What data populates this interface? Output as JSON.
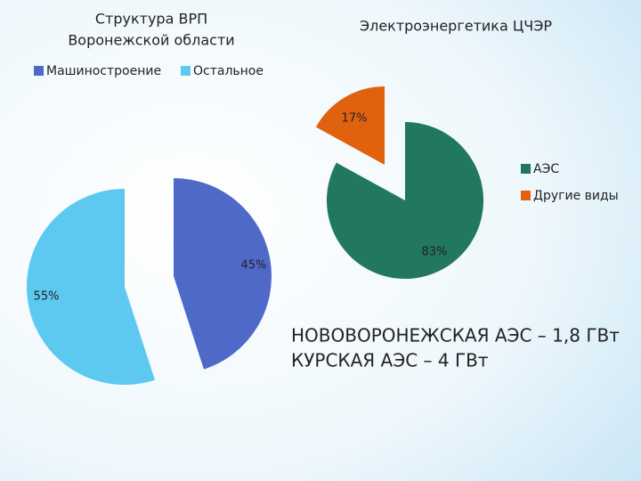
{
  "chart_data": [
    {
      "type": "pie",
      "title": [
        "Структура ВРП",
        "Воронежской области"
      ],
      "categories": [
        "Машиностроение",
        "Остальное"
      ],
      "values": [
        45,
        55
      ],
      "value_labels": [
        "45%",
        "55%"
      ],
      "colors": [
        "#4f69c9",
        "#5ec9f0"
      ],
      "legend": "top"
    },
    {
      "type": "pie",
      "title": [
        "Электроэнергетика ЦЧЭР"
      ],
      "categories": [
        "АЭС",
        "Другие виды"
      ],
      "values": [
        83,
        17
      ],
      "value_labels": [
        "83%",
        "17%"
      ],
      "colors": [
        "#21775f",
        "#e0620f"
      ],
      "legend": "right"
    }
  ],
  "notes": [
    "НОВОВОРОНЕЖСКАЯ АЭС – 1,8 ГВт",
    "КУРСКАЯ АЭС – 4 ГВт"
  ]
}
